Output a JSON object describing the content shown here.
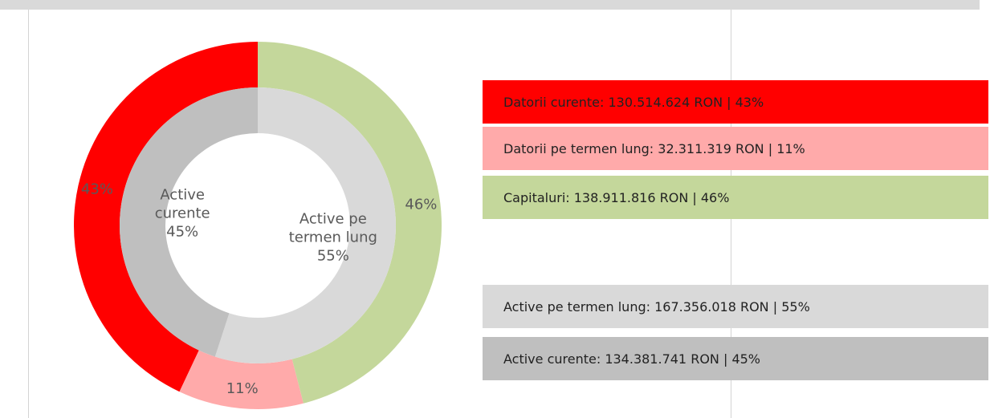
{
  "chart_data": {
    "type": "donut",
    "series": [
      {
        "direction": "counterclockwise",
        "values": [
          43,
          11,
          46
        ],
        "value_labels": [
          "43%",
          "11%",
          "46%"
        ],
        "colors": [
          "#ff0000",
          "#ffaaaa",
          "#c4d79b"
        ],
        "legend": [
          "Datorii curente: 130.514.624 RON | 43%",
          "Datorii pe termen lung: 32.311.319 RON | 11%",
          "Capitaluri: 138.911.816 RON | 46%"
        ]
      },
      {
        "direction": "clockwise",
        "categories": [
          "Active pe termen lung",
          "Active curente"
        ],
        "values": [
          55,
          45
        ],
        "value_labels": [
          "55%",
          "45%"
        ],
        "colors": [
          "#d9d9d9",
          "#bfbfbf"
        ],
        "legend": [
          "Active pe termen lung: 167.356.018 RON | 55%",
          "Active curente: 134.381.741 RON | 45%"
        ]
      }
    ]
  }
}
